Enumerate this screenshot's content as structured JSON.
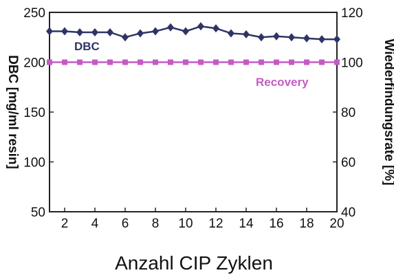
{
  "chart_data": {
    "type": "line",
    "xlabel": "Anzahl CIP Zyklen",
    "ylabel_left": "DBC [mg/ml resin]",
    "ylabel_right": "Wiederfindungsrate [%]",
    "xlim": [
      1,
      20
    ],
    "ylim_left": [
      50,
      250
    ],
    "ylim_right": [
      40,
      120
    ],
    "x_ticks": [
      "2",
      "4",
      "6",
      "8",
      "10",
      "12",
      "14",
      "16",
      "18",
      "20"
    ],
    "y_ticks_left": [
      "50",
      "100",
      "150",
      "200",
      "250"
    ],
    "y_ticks_right": [
      "40",
      "60",
      "80",
      "100",
      "120"
    ],
    "grid": false,
    "x": [
      1,
      2,
      3,
      4,
      5,
      6,
      7,
      8,
      9,
      10,
      11,
      12,
      13,
      14,
      15,
      16,
      17,
      18,
      19,
      20
    ],
    "series": [
      {
        "name": "DBC",
        "axis": "left",
        "color": "#2e3566",
        "marker": "diamond",
        "values": [
          231,
          231,
          230,
          230,
          230,
          225,
          229,
          231,
          235,
          231,
          236,
          234,
          229,
          228,
          225,
          226,
          225,
          224,
          223,
          223
        ]
      },
      {
        "name": "Recovery",
        "axis": "right",
        "color": "#c45bc4",
        "marker": "square",
        "values": [
          100,
          100,
          100,
          100,
          100,
          100,
          100,
          100,
          100,
          100,
          100,
          100,
          100,
          100,
          100,
          100,
          100,
          100,
          100,
          100
        ]
      }
    ]
  }
}
